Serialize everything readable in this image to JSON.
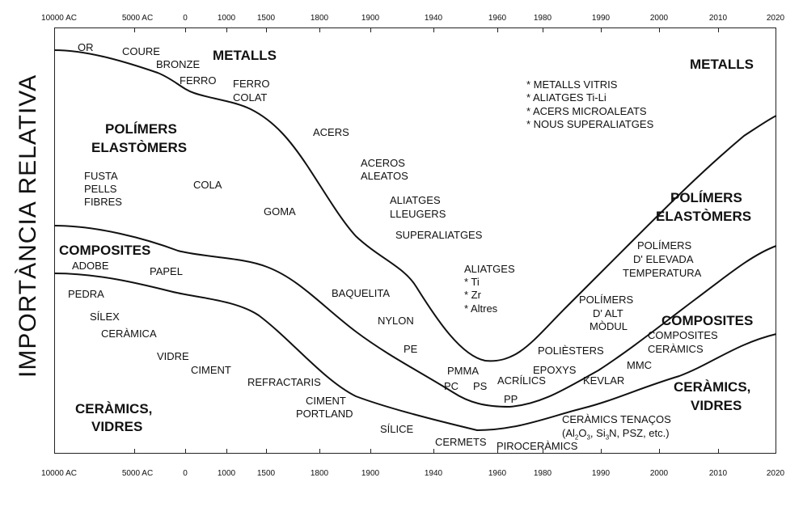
{
  "y_axis_label": "IMPORTÀNCIA RELATIVA",
  "x_ticks": [
    "10000 AC",
    "5000 AC",
    "0",
    "1000",
    "1500",
    "1800",
    "1900",
    "1940",
    "1960",
    "1980",
    "1990",
    "2000",
    "2010",
    "2020"
  ],
  "labels": {
    "metalls_left": "METALLS",
    "metalls_right": "METALLS",
    "or": "OR",
    "coure": "COURE",
    "bronze": "BRONZE",
    "ferro": "FERRO",
    "ferro_colat_1": "FERRO",
    "ferro_colat_2": "COLAT",
    "acers": "ACERS",
    "aceros_aleatos_1": "ACEROS",
    "aceros_aleatos_2": "ALEATOS",
    "aliatges_lleugers_1": "ALIATGES",
    "aliatges_lleugers_2": "LLEUGERS",
    "superaliatges": "SUPERALIATGES",
    "aliatges": "ALIATGES",
    "ti": "* Ti",
    "zr": "* Zr",
    "altres": "* Altres",
    "new_metals_1": "* METALLS VITRIS",
    "new_metals_2": "* ALIATGES Ti-Li",
    "new_metals_3": "* ACERS MICROALEATS",
    "new_metals_4": "* NOUS SUPERALIATGES",
    "polimers_left_1": "POLÍMERS",
    "polimers_left_2": "ELASTÒMERS",
    "polimers_right_1": "POLÍMERS",
    "polimers_right_2": "ELASTÒMERS",
    "fusta": "FUSTA",
    "pells": "PELLS",
    "fibres": "FIBRES",
    "cola": "COLA",
    "goma": "GOMA",
    "baquelita": "BAQUELITA",
    "nylon": "NYLON",
    "pe": "PE",
    "pmma": "PMMA",
    "pc": "PC",
    "ps": "PS",
    "pp": "PP",
    "acrilics": "ACRÍLICS",
    "epoxys": "EPOXYS",
    "poliesters": "POLIÈSTERS",
    "pol_elev_1": "POLÍMERS",
    "pol_elev_2": "D' ELEVADA",
    "pol_elev_3": "TEMPERATURA",
    "pol_alt_1": "POLÍMERS",
    "pol_alt_2": "D' ALT",
    "pol_alt_3": "MÒDUL",
    "composites_left": "COMPOSITES",
    "composites_right": "COMPOSITES",
    "adobe": "ADOBE",
    "papel": "PAPEL",
    "comp_cer_1": "COMPOSITES",
    "comp_cer_2": "CERÀMICS",
    "mmc": "MMC",
    "kevlar": "KEVLAR",
    "ceramics_left_1": "CERÀMICS,",
    "ceramics_left_2": "VIDRES",
    "ceramics_right_1": "CERÀMICS,",
    "ceramics_right_2": "VIDRES",
    "pedra": "PEDRA",
    "silex": "SÍLEX",
    "ceramica": "CERÀMICA",
    "vidre": "VIDRE",
    "ciment": "CIMENT",
    "refractaris": "REFRACTARIS",
    "ciment_portland_1": "CIMENT",
    "ciment_portland_2": "PORTLAND",
    "silice": "SÍLICE",
    "cermets": "CERMETS",
    "piroceramics": "PIROCERÀMICS",
    "cer_tenacos": "CERÀMICS TENAÇOS",
    "cer_tenacos_al": "(Al",
    "cer_tenacos_sub1": "2",
    "cer_tenacos_o": "O",
    "cer_tenacos_sub2": "3",
    "cer_tenacos_si": ", Si",
    "cer_tenacos_sub3": "3",
    "cer_tenacos_rest": "N, PSZ, etc.)"
  }
}
